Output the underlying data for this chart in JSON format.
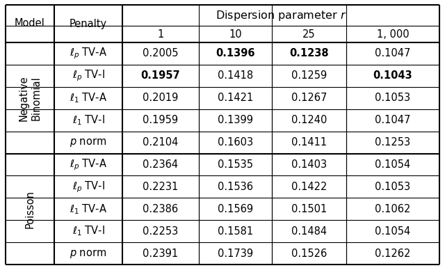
{
  "title": "Dispersion parameter $r$",
  "col_headers": [
    "1",
    "10",
    "25",
    "1, 000"
  ],
  "row_group1_label": "Negative\nBinomial",
  "row_group2_label": "Poisson",
  "penalty_col_header": "Penalty",
  "model_col_header": "Model",
  "rows": [
    {
      "group": 0,
      "penalty": "$\\ell_p$ TV-A",
      "values": [
        "0.2005",
        "0.1396",
        "0.1238",
        "0.1047"
      ],
      "bold": [
        false,
        true,
        true,
        false
      ]
    },
    {
      "group": 0,
      "penalty": "$\\ell_p$ TV-I",
      "values": [
        "0.1957",
        "0.1418",
        "0.1259",
        "0.1043"
      ],
      "bold": [
        true,
        false,
        false,
        true
      ]
    },
    {
      "group": 0,
      "penalty": "$\\ell_1$ TV-A",
      "values": [
        "0.2019",
        "0.1421",
        "0.1267",
        "0.1053"
      ],
      "bold": [
        false,
        false,
        false,
        false
      ]
    },
    {
      "group": 0,
      "penalty": "$\\ell_1$ TV-I",
      "values": [
        "0.1959",
        "0.1399",
        "0.1240",
        "0.1047"
      ],
      "bold": [
        false,
        false,
        false,
        false
      ]
    },
    {
      "group": 0,
      "penalty": "$p$ norm",
      "values": [
        "0.2104",
        "0.1603",
        "0.1411",
        "0.1253"
      ],
      "bold": [
        false,
        false,
        false,
        false
      ]
    },
    {
      "group": 1,
      "penalty": "$\\ell_p$ TV-A",
      "values": [
        "0.2364",
        "0.1535",
        "0.1403",
        "0.1054"
      ],
      "bold": [
        false,
        false,
        false,
        false
      ]
    },
    {
      "group": 1,
      "penalty": "$\\ell_p$ TV-I",
      "values": [
        "0.2231",
        "0.1536",
        "0.1422",
        "0.1053"
      ],
      "bold": [
        false,
        false,
        false,
        false
      ]
    },
    {
      "group": 1,
      "penalty": "$\\ell_1$ TV-A",
      "values": [
        "0.2386",
        "0.1569",
        "0.1501",
        "0.1062"
      ],
      "bold": [
        false,
        false,
        false,
        false
      ]
    },
    {
      "group": 1,
      "penalty": "$\\ell_1$ TV-I",
      "values": [
        "0.2253",
        "0.1581",
        "0.1484",
        "0.1054"
      ],
      "bold": [
        false,
        false,
        false,
        false
      ]
    },
    {
      "group": 1,
      "penalty": "$p$ norm",
      "values": [
        "0.2391",
        "0.1739",
        "0.1526",
        "0.1262"
      ],
      "bold": [
        false,
        false,
        false,
        false
      ]
    }
  ],
  "background_color": "#ffffff",
  "line_color": "#000000",
  "fontsize": 10.5,
  "header_fontsize": 11.5
}
